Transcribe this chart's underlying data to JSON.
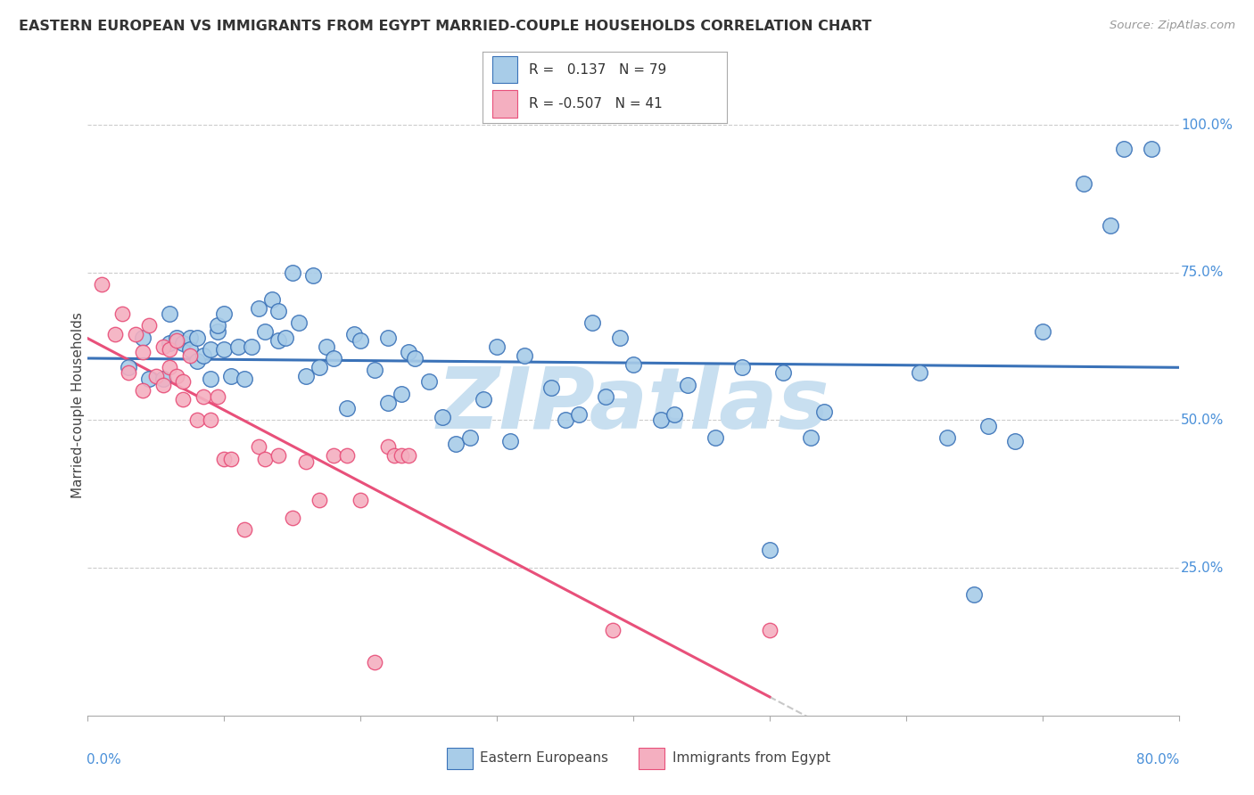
{
  "title": "EASTERN EUROPEAN VS IMMIGRANTS FROM EGYPT MARRIED-COUPLE HOUSEHOLDS CORRELATION CHART",
  "source": "Source: ZipAtlas.com",
  "ylabel": "Married-couple Households",
  "xmin": 0.0,
  "xmax": 0.8,
  "ymin": 0.0,
  "ymax": 1.05,
  "blue_color": "#a8cce8",
  "pink_color": "#f4afc0",
  "blue_line_color": "#3a72b8",
  "pink_line_color": "#e8507a",
  "trendline_ext_color": "#c8c8c8",
  "watermark_color": "#c8dff0",
  "blue_dots_x": [
    0.03,
    0.04,
    0.045,
    0.055,
    0.06,
    0.06,
    0.065,
    0.07,
    0.075,
    0.075,
    0.08,
    0.08,
    0.085,
    0.09,
    0.09,
    0.095,
    0.095,
    0.1,
    0.1,
    0.105,
    0.11,
    0.115,
    0.12,
    0.125,
    0.13,
    0.135,
    0.14,
    0.14,
    0.145,
    0.15,
    0.155,
    0.16,
    0.165,
    0.17,
    0.175,
    0.18,
    0.19,
    0.195,
    0.2,
    0.21,
    0.22,
    0.22,
    0.23,
    0.235,
    0.24,
    0.25,
    0.26,
    0.27,
    0.28,
    0.29,
    0.3,
    0.31,
    0.32,
    0.34,
    0.35,
    0.36,
    0.37,
    0.38,
    0.39,
    0.4,
    0.42,
    0.43,
    0.44,
    0.46,
    0.48,
    0.5,
    0.51,
    0.53,
    0.54,
    0.61,
    0.63,
    0.65,
    0.66,
    0.68,
    0.7,
    0.73,
    0.75,
    0.76,
    0.78
  ],
  "blue_dots_y": [
    0.59,
    0.64,
    0.57,
    0.57,
    0.68,
    0.63,
    0.64,
    0.63,
    0.64,
    0.62,
    0.6,
    0.64,
    0.61,
    0.57,
    0.62,
    0.65,
    0.66,
    0.62,
    0.68,
    0.575,
    0.625,
    0.57,
    0.625,
    0.69,
    0.65,
    0.705,
    0.635,
    0.685,
    0.64,
    0.75,
    0.665,
    0.575,
    0.745,
    0.59,
    0.625,
    0.605,
    0.52,
    0.645,
    0.635,
    0.585,
    0.53,
    0.64,
    0.545,
    0.615,
    0.605,
    0.565,
    0.505,
    0.46,
    0.47,
    0.535,
    0.625,
    0.465,
    0.61,
    0.555,
    0.5,
    0.51,
    0.665,
    0.54,
    0.64,
    0.595,
    0.5,
    0.51,
    0.56,
    0.47,
    0.59,
    0.28,
    0.58,
    0.47,
    0.515,
    0.58,
    0.47,
    0.205,
    0.49,
    0.465,
    0.65,
    0.9,
    0.83,
    0.96,
    0.96
  ],
  "pink_dots_x": [
    0.01,
    0.02,
    0.025,
    0.03,
    0.035,
    0.04,
    0.04,
    0.045,
    0.05,
    0.055,
    0.055,
    0.06,
    0.06,
    0.065,
    0.065,
    0.07,
    0.07,
    0.075,
    0.08,
    0.085,
    0.09,
    0.095,
    0.1,
    0.105,
    0.115,
    0.125,
    0.13,
    0.14,
    0.15,
    0.16,
    0.17,
    0.18,
    0.19,
    0.2,
    0.21,
    0.22,
    0.225,
    0.23,
    0.235,
    0.385,
    0.5
  ],
  "pink_dots_y": [
    0.73,
    0.645,
    0.68,
    0.58,
    0.645,
    0.55,
    0.615,
    0.66,
    0.575,
    0.56,
    0.625,
    0.59,
    0.62,
    0.575,
    0.635,
    0.535,
    0.565,
    0.61,
    0.5,
    0.54,
    0.5,
    0.54,
    0.435,
    0.435,
    0.315,
    0.455,
    0.435,
    0.44,
    0.335,
    0.43,
    0.365,
    0.44,
    0.44,
    0.365,
    0.09,
    0.455,
    0.44,
    0.44,
    0.44,
    0.145,
    0.145
  ]
}
